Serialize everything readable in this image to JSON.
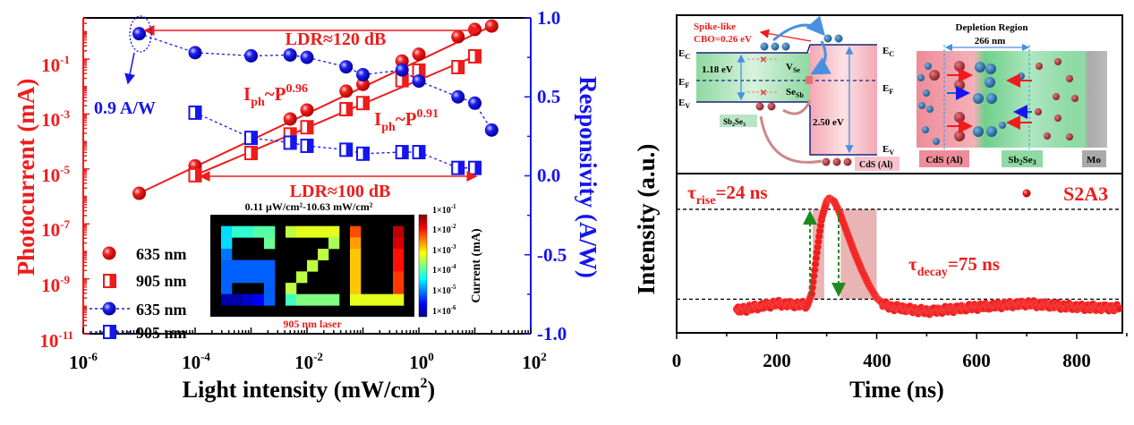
{
  "colors": {
    "red": "#ee1c1c",
    "blue": "#1515ee",
    "black": "#000000",
    "green": "#1f8a1f"
  },
  "chart_data": [
    {
      "type": "scatter",
      "xlabel": {
        "main": "Light intensity (mW/cm",
        "sup": "2",
        "end": ")"
      },
      "ylabel_left": "Photocurrent (mA)",
      "ylabel_right": "Responsivity (A/W)",
      "xscale": "log",
      "yscale_left": "log",
      "yscale_right": "linear",
      "xlim": [
        1e-06,
        100
      ],
      "ylim_left": [
        1e-11,
        3.16
      ],
      "ylim_right": [
        -1.0,
        1.0
      ],
      "x_ticks": [
        {
          "b": "10",
          "e": "-6"
        },
        {
          "b": "10",
          "e": "-4"
        },
        {
          "b": "10",
          "e": "-2"
        },
        {
          "b": "10",
          "e": "0"
        },
        {
          "b": "10",
          "e": "2"
        }
      ],
      "y_left_ticks": [
        {
          "b": "10",
          "e": "-1"
        },
        {
          "b": "10",
          "e": "-3"
        },
        {
          "b": "10",
          "e": "-5"
        },
        {
          "b": "10",
          "e": "-7"
        },
        {
          "b": "10",
          "e": "-9"
        },
        {
          "b": "10",
          "e": "-11"
        }
      ],
      "y_right_ticks": [
        "1.0",
        "0.5",
        "0.0",
        "-0.5",
        "-1.0"
      ],
      "series": [
        {
          "name": "635 nm",
          "axis": "left",
          "marker": "circle",
          "color": "#ee1c1c",
          "x": [
            1e-05,
            0.0001,
            0.005,
            0.01,
            0.05,
            0.1,
            0.5,
            1,
            5,
            10,
            20
          ],
          "y": [
            1.3e-06,
            1.3e-05,
            0.00066,
            0.0014,
            0.0068,
            0.012,
            0.085,
            0.15,
            0.65,
            1.2,
            1.6
          ]
        },
        {
          "name": "905 nm",
          "axis": "left",
          "marker": "half-square",
          "color": "#ee1c1c",
          "x": [
            0.0001,
            0.001,
            0.005,
            0.01,
            0.05,
            0.1,
            0.5,
            1,
            5,
            10
          ],
          "y": [
            5.9e-06,
            3.8e-05,
            0.00018,
            0.00033,
            0.0015,
            0.0025,
            0.017,
            0.038,
            0.051,
            0.126
          ]
        },
        {
          "name": "635 nm",
          "axis": "right",
          "marker": "circle",
          "color": "#1515ee",
          "line": "dashed",
          "x": [
            1e-05,
            0.0001,
            0.001,
            0.005,
            0.01,
            0.05,
            0.1,
            0.5,
            1,
            5,
            10,
            20
          ],
          "y": [
            0.9,
            0.78,
            0.76,
            0.765,
            0.75,
            0.69,
            0.64,
            0.67,
            0.6,
            0.5,
            0.46,
            0.29
          ]
        },
        {
          "name": "905 nm",
          "axis": "right",
          "marker": "half-square",
          "color": "#1515ee",
          "line": "dashed",
          "x": [
            0.0001,
            0.001,
            0.005,
            0.01,
            0.05,
            0.1,
            0.5,
            1,
            5,
            10
          ],
          "y": [
            0.4,
            0.24,
            0.21,
            0.19,
            0.165,
            0.14,
            0.15,
            0.15,
            0.05,
            0.05
          ]
        }
      ],
      "fits": [
        {
          "label": {
            "base": "I",
            "sub": "ph",
            "mid": "~P",
            "sup": "0.96"
          },
          "x": [
            1e-05,
            20
          ],
          "y": [
            1.3e-06,
            1.6
          ]
        },
        {
          "label": {
            "base": "I",
            "sub": "ph",
            "mid": "~P",
            "sup": "0.91"
          },
          "x": [
            0.0001,
            10
          ],
          "y": [
            5.9e-06,
            0.126
          ]
        }
      ],
      "annotations": {
        "ldr_635": "LDR≈120 dB",
        "ldr_905": "LDR≈100 dB",
        "responsivity_peak": "0.9 A/W"
      },
      "inset": {
        "title": "0.11 μW/cm²-10.63 mW/cm²",
        "caption": "905 nm laser",
        "colorbar_label": "Current (mA)",
        "colorbar_ticks": [
          {
            "b": "1×10",
            "e": "-1"
          },
          {
            "b": "1×10",
            "e": "-2"
          },
          {
            "b": "1×10",
            "e": "-3"
          },
          {
            "b": "1×10",
            "e": "-4"
          },
          {
            "b": "1×10",
            "e": "-5"
          },
          {
            "b": "1×10",
            "e": "-6"
          }
        ],
        "colormap": "jet",
        "crange_log": [
          -6,
          -1
        ],
        "grid_log_current": [
          [
            null,
            null,
            null,
            null,
            null,
            null,
            null,
            null,
            null,
            null,
            null,
            null,
            null,
            null,
            null,
            null,
            null,
            null,
            null
          ],
          [
            null,
            -4.3,
            -3.9,
            -3.9,
            -3.7,
            -3.7,
            null,
            -3.2,
            -3.0,
            -3.0,
            -3.0,
            -3.0,
            null,
            -2.0,
            null,
            null,
            null,
            -1.3,
            null
          ],
          [
            null,
            -4.3,
            null,
            null,
            null,
            -3.6,
            null,
            null,
            null,
            null,
            null,
            -3.3,
            null,
            -2.4,
            null,
            null,
            null,
            -1.4,
            null
          ],
          [
            null,
            -4.8,
            null,
            null,
            null,
            null,
            null,
            null,
            null,
            null,
            -3.2,
            null,
            null,
            -2.6,
            null,
            null,
            null,
            -1.7,
            null
          ],
          [
            null,
            -4.9,
            -4.9,
            -4.9,
            -4.9,
            -4.9,
            null,
            null,
            null,
            -3.2,
            null,
            null,
            null,
            -2.6,
            null,
            null,
            null,
            -1.7,
            null
          ],
          [
            null,
            -4.9,
            -4.9,
            -4.9,
            -4.9,
            -4.9,
            null,
            null,
            -3.2,
            null,
            null,
            null,
            null,
            -2.6,
            null,
            null,
            null,
            -1.9,
            null
          ],
          [
            null,
            -4.9,
            null,
            null,
            null,
            -4.9,
            null,
            -3.2,
            null,
            null,
            null,
            null,
            null,
            -2.6,
            null,
            null,
            null,
            -1.9,
            null
          ],
          [
            null,
            -5.8,
            -5.8,
            -5.6,
            -5.4,
            -4.9,
            null,
            -3.8,
            -3.5,
            -3.5,
            -3.5,
            -3.5,
            null,
            -3.0,
            -3.0,
            -3.0,
            -3.0,
            -3.0,
            null
          ],
          [
            null,
            null,
            null,
            null,
            null,
            null,
            null,
            null,
            null,
            null,
            null,
            null,
            null,
            null,
            null,
            null,
            null,
            null,
            null
          ]
        ]
      }
    },
    {
      "type": "scatter",
      "xlabel": "Time (ns)",
      "ylabel": "Intensity (a.u.)",
      "xlim": [
        0,
        900
      ],
      "ylim": [
        -0.2,
        1.21
      ],
      "x_ticks": [
        "0",
        "200",
        "400",
        "600",
        "800"
      ],
      "series": [
        {
          "name": "S2A3",
          "color": "#ee1c1c",
          "x": [
            120,
            160,
            200,
            240,
            262,
            270,
            280,
            290,
            300,
            305,
            315,
            325,
            340,
            355,
            370,
            385,
            400,
            415,
            430,
            500,
            600,
            700,
            800,
            885
          ],
          "y": [
            0.0,
            0.03,
            0.06,
            0.05,
            0.05,
            0.15,
            0.5,
            0.82,
            0.97,
            1.0,
            0.97,
            0.88,
            0.7,
            0.52,
            0.36,
            0.22,
            0.11,
            0.05,
            0.03,
            -0.01,
            0.03,
            0.06,
            0.03,
            0.02
          ]
        }
      ],
      "reference_levels": [
        0.9,
        0.1
      ],
      "shaded_ranges": [
        [
          272,
          295
        ],
        [
          328,
          400
        ]
      ],
      "annotations": {
        "rise": {
          "base": "τ",
          "sub": "rise",
          "val": "=24 ns"
        },
        "decay": {
          "base": "τ",
          "sub": "decay",
          "val": "=75 ns"
        }
      }
    }
  ],
  "schematic": {
    "spike": "Spike-like",
    "cbo": "CBO=0.26 eV",
    "ec": {
      "b": "E",
      "s": "C"
    },
    "ef": {
      "b": "E",
      "s": "F"
    },
    "ev": {
      "b": "E",
      "s": "V"
    },
    "gap_sb2se3": "1.18 eV",
    "gap_cds": "2.50 eV",
    "vse": {
      "b": "V",
      "s": "Se"
    },
    "sesb": {
      "b": "Se",
      "s": "Sb"
    },
    "sb2se3": {
      "a": "Sb",
      "s1": "2",
      "b": "Se",
      "s2": "3"
    },
    "cds": "CdS (Al)",
    "depletion_title": "Depletion Region",
    "depletion_width": "266 nm",
    "mo": "Mo"
  }
}
